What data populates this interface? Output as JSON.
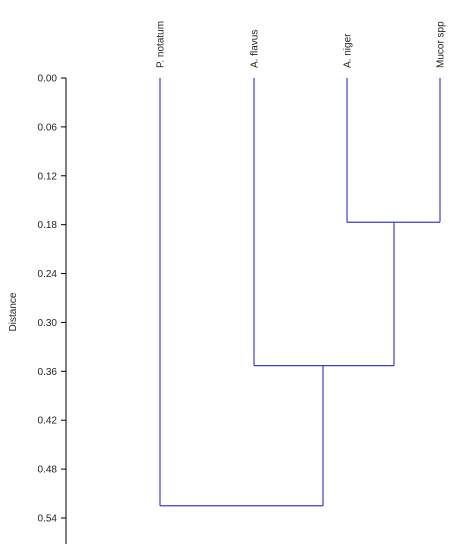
{
  "chart_data": {
    "type": "dendrogram",
    "orientation": "vertical",
    "ylabel": "Distance",
    "ylim": [
      0,
      0.56
    ],
    "ticks": [
      0.0,
      0.06,
      0.12,
      0.18,
      0.24,
      0.3,
      0.36,
      0.42,
      0.48,
      0.54
    ],
    "tick_labels": [
      "0.00",
      "0.06",
      "0.12",
      "0.18",
      "0.24",
      "0.30",
      "0.36",
      "0.42",
      "0.48",
      "0.54"
    ],
    "leaves": [
      "P. notatum",
      "A. flavus",
      "A. niger",
      "Mucor spp"
    ],
    "merges": [
      {
        "left": "A. niger",
        "right": "Mucor spp",
        "height": 0.177
      },
      {
        "left": "A. flavus",
        "right": "[A. niger, Mucor spp]",
        "height": 0.353
      },
      {
        "left": "P. notatum",
        "right": "[A. flavus, A. niger, Mucor spp]",
        "height": 0.525
      }
    ],
    "colors": {
      "branch": "#3f3fbf",
      "axis": "#000000"
    }
  }
}
